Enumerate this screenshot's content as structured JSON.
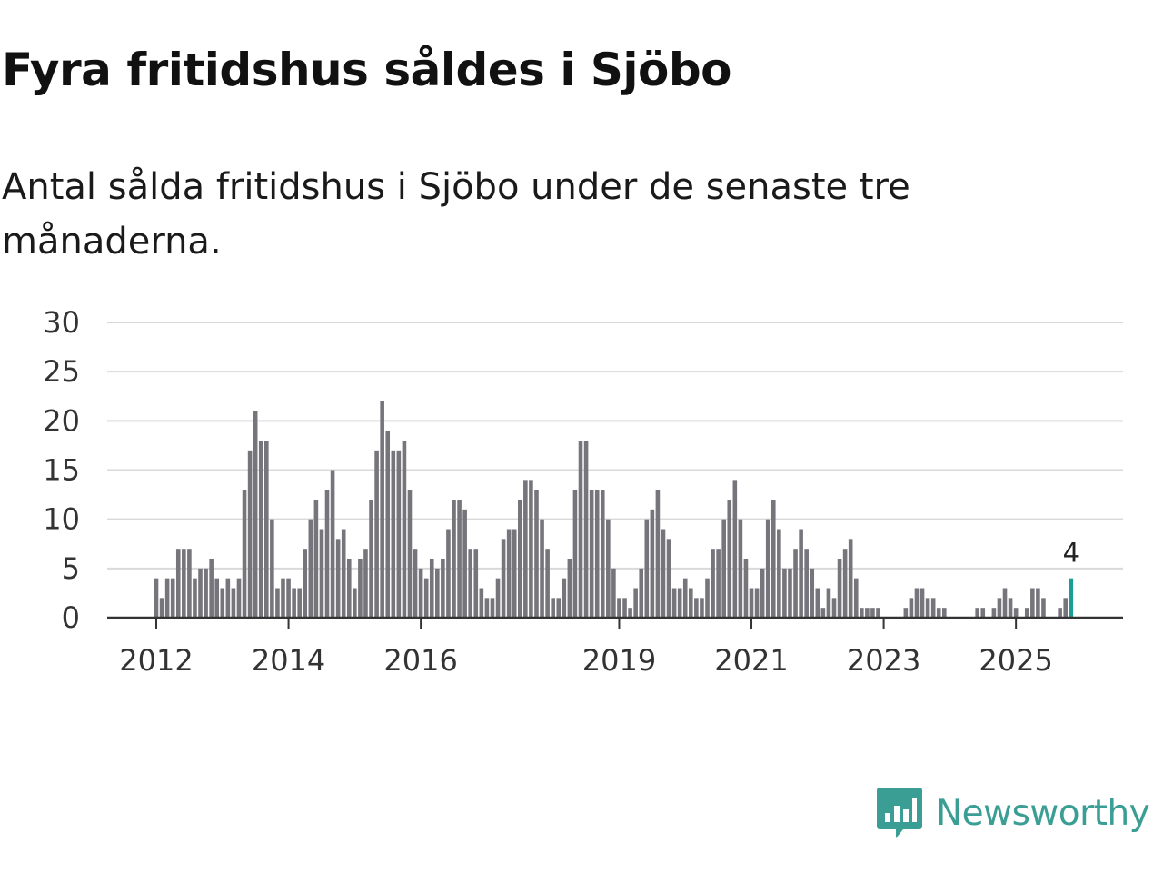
{
  "header": {
    "title": "Fyra fritidshus såldes i Sjöbo",
    "subtitle": "Antal sålda fritidshus i Sjöbo under de senaste tre månaderna."
  },
  "brand": {
    "name": "Newsworthy",
    "icon": "newsworthy-logo-icon",
    "color": "#3b9e94"
  },
  "chart_data": {
    "type": "bar",
    "title": "",
    "xlabel": "",
    "ylabel": "",
    "ylim": [
      0,
      30
    ],
    "yticks": [
      0,
      5,
      10,
      15,
      20,
      25,
      30
    ],
    "grid": true,
    "legend": "none",
    "bar_color": "#76757c",
    "highlight_color": "#1a9e96",
    "x_ticks": [
      {
        "label": "2012",
        "index": 0
      },
      {
        "label": "2014",
        "index": 24
      },
      {
        "label": "2016",
        "index": 48
      },
      {
        "label": "2019",
        "index": 84
      },
      {
        "label": "2021",
        "index": 108
      },
      {
        "label": "2023",
        "index": 132
      },
      {
        "label": "2025",
        "index": 156
      }
    ],
    "x_start": "2012-01",
    "frequency": "monthly",
    "values": [
      4,
      2,
      4,
      4,
      7,
      7,
      7,
      4,
      5,
      5,
      6,
      4,
      3,
      4,
      3,
      4,
      13,
      17,
      21,
      18,
      18,
      10,
      3,
      4,
      4,
      3,
      3,
      7,
      10,
      12,
      9,
      13,
      15,
      8,
      9,
      6,
      3,
      6,
      7,
      12,
      17,
      22,
      19,
      17,
      17,
      18,
      13,
      7,
      5,
      4,
      6,
      5,
      6,
      9,
      12,
      12,
      11,
      7,
      7,
      3,
      2,
      2,
      4,
      8,
      9,
      9,
      12,
      14,
      14,
      13,
      10,
      7,
      2,
      2,
      4,
      6,
      13,
      18,
      18,
      13,
      13,
      13,
      10,
      5,
      2,
      2,
      1,
      3,
      5,
      10,
      11,
      13,
      9,
      8,
      3,
      3,
      4,
      3,
      2,
      2,
      4,
      7,
      7,
      10,
      12,
      14,
      10,
      6,
      3,
      3,
      5,
      10,
      12,
      9,
      5,
      5,
      7,
      9,
      7,
      5,
      3,
      1,
      3,
      2,
      6,
      7,
      8,
      4,
      1,
      1,
      1,
      1,
      0,
      0,
      0,
      0,
      1,
      2,
      3,
      3,
      2,
      2,
      1,
      1,
      0,
      0,
      0,
      0,
      0,
      1,
      1,
      0,
      1,
      2,
      3,
      2,
      1,
      0,
      1,
      3,
      3,
      2,
      0,
      0,
      1,
      2,
      4
    ],
    "highlight_label": "4"
  }
}
